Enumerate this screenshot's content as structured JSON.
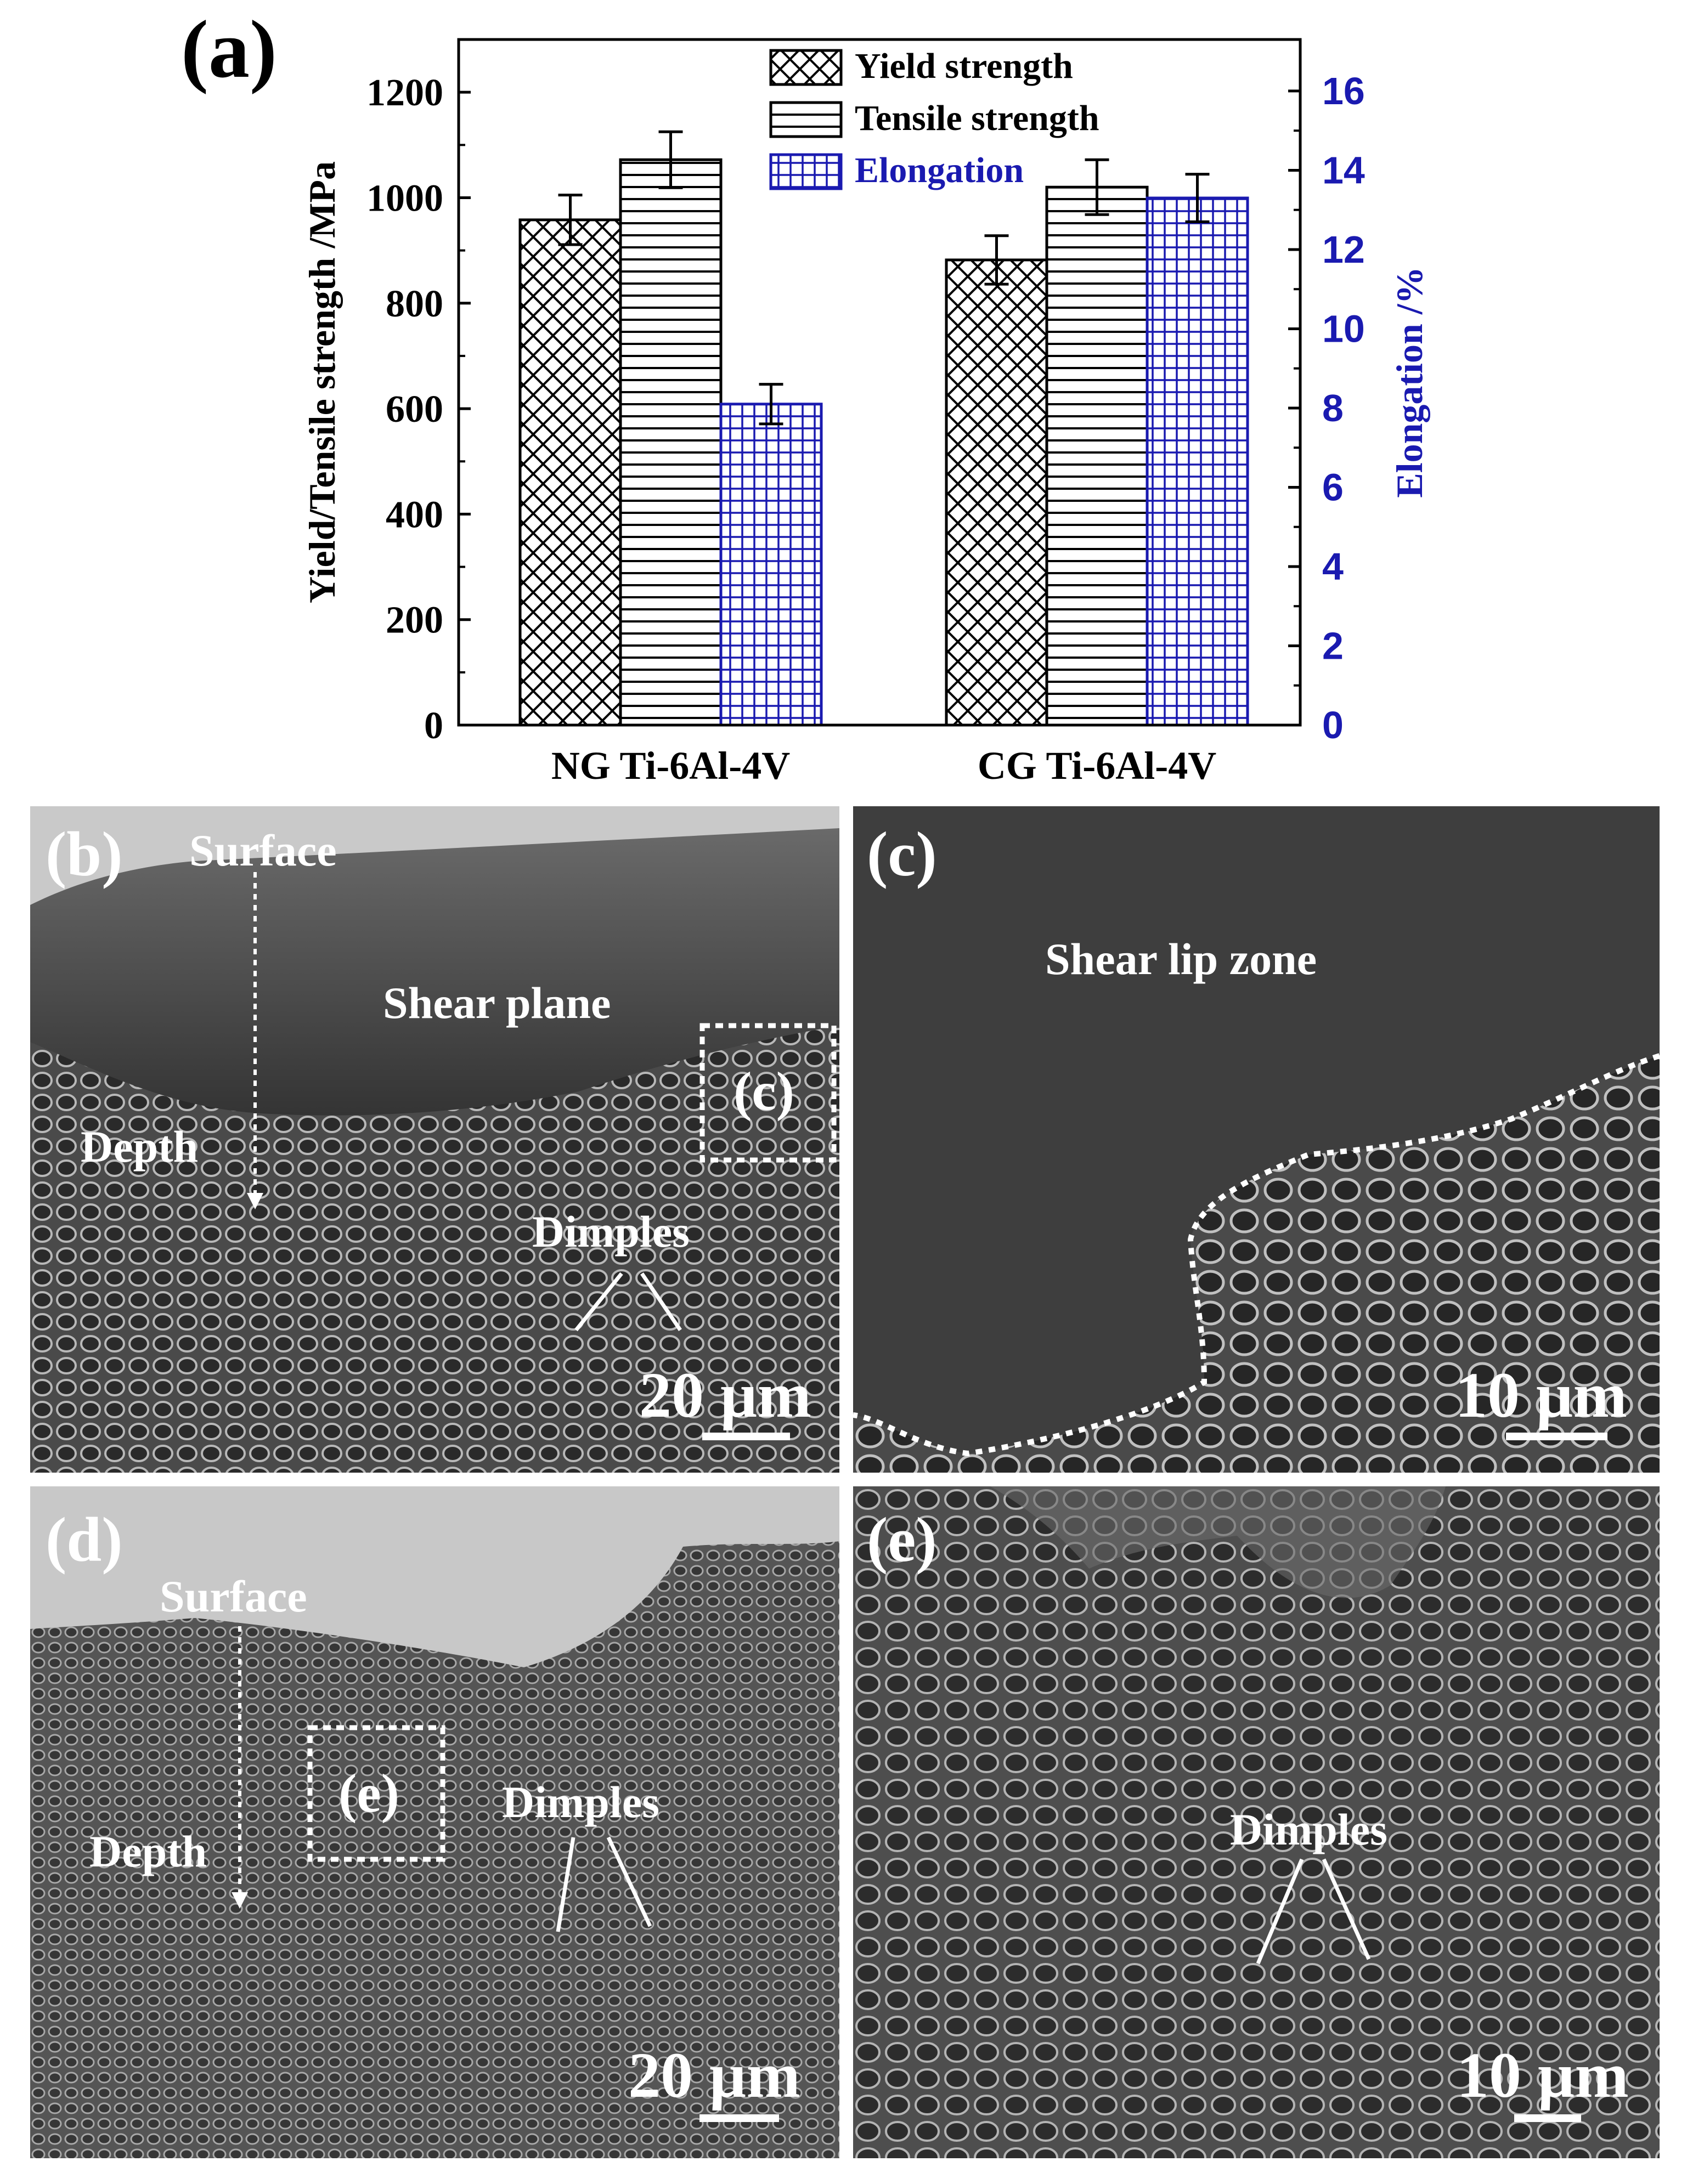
{
  "chart_data": {
    "type": "bar",
    "panel_label": "(a)",
    "categories": [
      "NG Ti-6Al-4V",
      "CG Ti-6Al-4V"
    ],
    "ylabel": "Yield/Tensile strength /MPa",
    "y2label": "Elongation /%",
    "ylim": [
      0,
      1300
    ],
    "y2lim": [
      0,
      17.3
    ],
    "yticks": [
      "0",
      "200",
      "400",
      "600",
      "800",
      "1000",
      "1200"
    ],
    "y2ticks": [
      "0",
      "2",
      "4",
      "6",
      "8",
      "10",
      "12",
      "14",
      "16"
    ],
    "legend_position": "top-center",
    "series": [
      {
        "name": "Yield strength",
        "axis": "left",
        "pattern": "crosshatch",
        "color": "#000000",
        "values": [
          958,
          882
        ],
        "errors": [
          47,
          46
        ]
      },
      {
        "name": "Tensile strength",
        "axis": "left",
        "pattern": "horizontal",
        "color": "#000000",
        "values": [
          1072,
          1020
        ],
        "errors": [
          53,
          52
        ]
      },
      {
        "name": "Elongation",
        "axis": "right",
        "pattern": "grid",
        "color": "#1a1ab0",
        "values": [
          8.1,
          13.3
        ],
        "errors": [
          0.5,
          0.6
        ]
      }
    ]
  },
  "micrographs": {
    "b": {
      "label": "(b)",
      "surface": "Surface",
      "shear": "Shear plane",
      "box": "(c)",
      "depth": "Depth",
      "dimples": "Dimples",
      "scale": "20 µm"
    },
    "c": {
      "label": "(c)",
      "zone": "Shear lip zone",
      "scale": "10 µm"
    },
    "d": {
      "label": "(d)",
      "surface": "Surface",
      "box": "(e)",
      "dimples": "Dimples",
      "depth": "Depth",
      "scale": "20 µm"
    },
    "e": {
      "label": "(e)",
      "dimples": "Dimples",
      "scale": "10 µm"
    }
  }
}
